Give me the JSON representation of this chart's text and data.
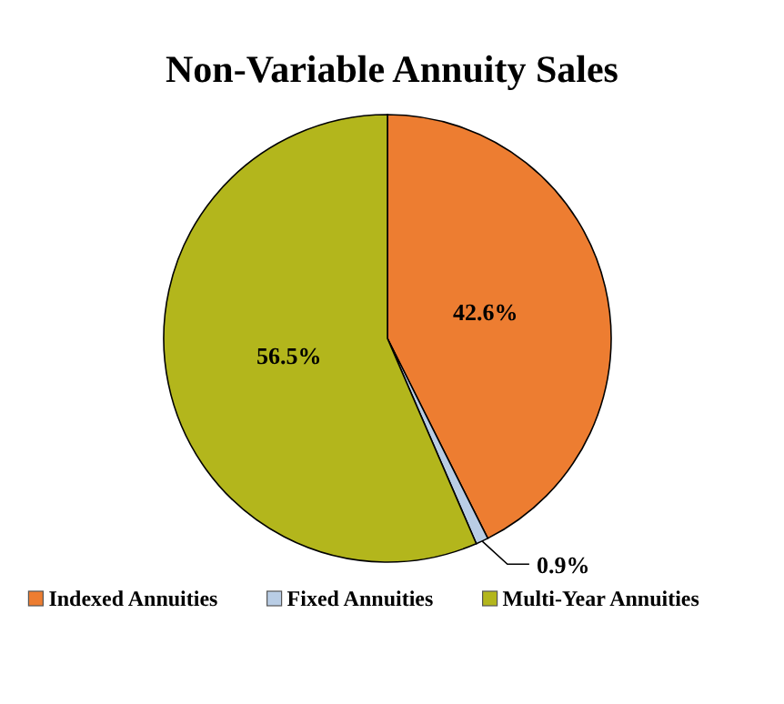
{
  "chart_data": {
    "type": "pie",
    "title": "Non-Variable Annuity Sales",
    "categories": [
      "Indexed Annuities",
      "Fixed Annuities",
      "Multi-Year Annuities"
    ],
    "values": [
      42.6,
      0.9,
      56.5
    ],
    "colors": [
      "#ed7d31",
      "#b9cde5",
      "#b3b61c"
    ],
    "value_labels": [
      "42.6%",
      "0.9%",
      "56.5%"
    ],
    "legend": "bottom"
  }
}
